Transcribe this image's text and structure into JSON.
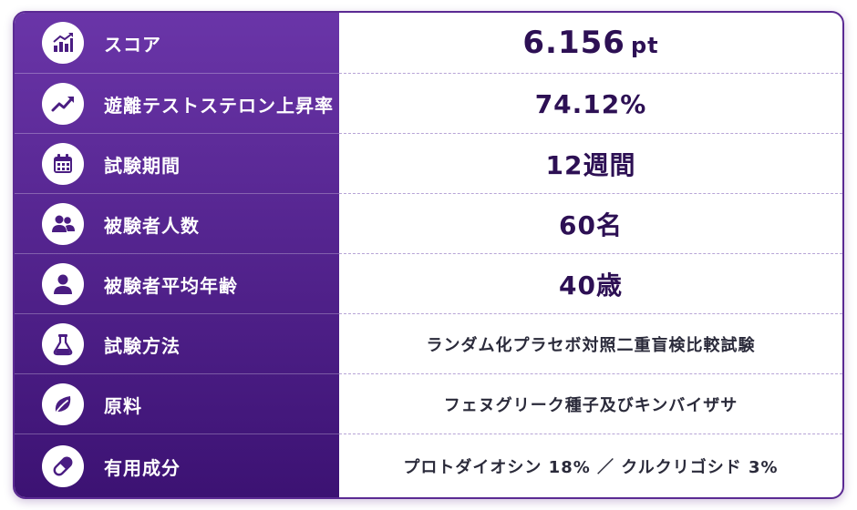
{
  "rows": [
    {
      "label": "スコア",
      "icon": "bar-chart-up-icon",
      "value": "6.156",
      "unit": "pt"
    },
    {
      "label": "遊離テストステロン上昇率",
      "icon": "trend-up-icon",
      "value": "74.12%"
    },
    {
      "label": "試験期間",
      "icon": "calendar-icon",
      "value": "12週間"
    },
    {
      "label": "被験者人数",
      "icon": "users-icon",
      "value": "60名"
    },
    {
      "label": "被験者平均年齢",
      "icon": "user-icon",
      "value": "40歳"
    },
    {
      "label": "試験方法",
      "icon": "flask-icon",
      "value": "ランダム化プラセボ対照二重盲検比較試験"
    },
    {
      "label": "原料",
      "icon": "leaf-icon",
      "value": "フェヌグリーク種子及びキンバイザサ"
    },
    {
      "label": "有用成分",
      "icon": "pill-icon",
      "value": "プロトダイオシン 18% ／ クルクリゴシド 3%"
    }
  ],
  "colors": {
    "accent": "#4a1d82",
    "label_bg_top": "#6a35a8",
    "label_bg_bottom": "#3c1273",
    "value_text": "#2d1054"
  }
}
